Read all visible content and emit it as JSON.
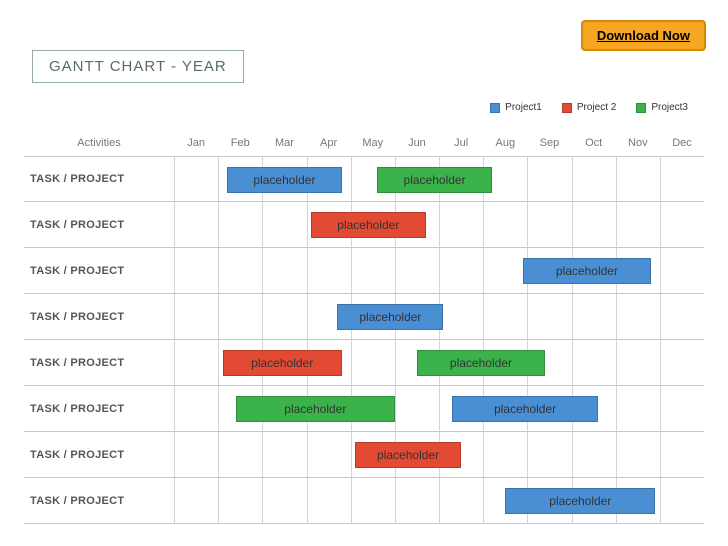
{
  "download_label": "Download Now",
  "title": "GANTT CHART - YEAR",
  "colors": {
    "project1": "#4a8fd3",
    "project2": "#e24a33",
    "project3": "#3bb24a",
    "download_bg": "#f5a623",
    "download_border": "#d48806",
    "grid": "#d4d4d4",
    "row_border": "#c8c8c8",
    "title_text": "#5a6a6a",
    "label_text": "#555"
  },
  "legend": [
    {
      "label": "Project1",
      "color_key": "project1"
    },
    {
      "label": "Project 2",
      "color_key": "project2"
    },
    {
      "label": "Project3",
      "color_key": "project3"
    }
  ],
  "activities_header": "Activities",
  "months": [
    "Jan",
    "Feb",
    "Mar",
    "Apr",
    "May",
    "Jun",
    "Jul",
    "Aug",
    "Sep",
    "Oct",
    "Nov",
    "Dec"
  ],
  "rows": [
    {
      "label": "TASK / PROJECT",
      "bars": [
        {
          "start": 1.2,
          "span": 2.6,
          "color_key": "project1",
          "text": "placeholder"
        },
        {
          "start": 4.6,
          "span": 2.6,
          "color_key": "project3",
          "text": "placeholder"
        }
      ]
    },
    {
      "label": "TASK / PROJECT",
      "bars": [
        {
          "start": 3.1,
          "span": 2.6,
          "color_key": "project2",
          "text": "placeholder"
        }
      ]
    },
    {
      "label": "TASK / PROJECT",
      "bars": [
        {
          "start": 7.9,
          "span": 2.9,
          "color_key": "project1",
          "text": "placeholder"
        }
      ]
    },
    {
      "label": "TASK / PROJECT",
      "bars": [
        {
          "start": 3.7,
          "span": 2.4,
          "color_key": "project1",
          "text": "placeholder"
        }
      ]
    },
    {
      "label": "TASK / PROJECT",
      "bars": [
        {
          "start": 1.1,
          "span": 2.7,
          "color_key": "project2",
          "text": "placeholder"
        },
        {
          "start": 5.5,
          "span": 2.9,
          "color_key": "project3",
          "text": "placeholder"
        }
      ]
    },
    {
      "label": "TASK / PROJECT",
      "bars": [
        {
          "start": 1.4,
          "span": 3.6,
          "color_key": "project3",
          "text": "placeholder"
        },
        {
          "start": 6.3,
          "span": 3.3,
          "color_key": "project1",
          "text": "placeholder"
        }
      ]
    },
    {
      "label": "TASK / PROJECT",
      "bars": [
        {
          "start": 4.1,
          "span": 2.4,
          "color_key": "project2",
          "text": "placeholder"
        }
      ]
    },
    {
      "label": "TASK / PROJECT",
      "bars": [
        {
          "start": 7.5,
          "span": 3.4,
          "color_key": "project1",
          "text": "placeholder"
        }
      ]
    }
  ]
}
